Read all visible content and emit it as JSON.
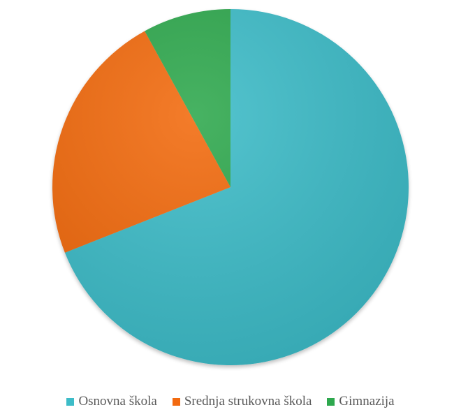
{
  "chart_data": {
    "type": "pie",
    "categories": [
      "Osnovna škola",
      "Srednja strukovna škola",
      "Gimnazija"
    ],
    "values": [
      69,
      23,
      8
    ],
    "colors": [
      "#3dbcc8",
      "#f26a10",
      "#2ea84e"
    ],
    "title": "",
    "legend": "bottom",
    "start_angle": "12 o'clock",
    "direction": "clockwise"
  }
}
